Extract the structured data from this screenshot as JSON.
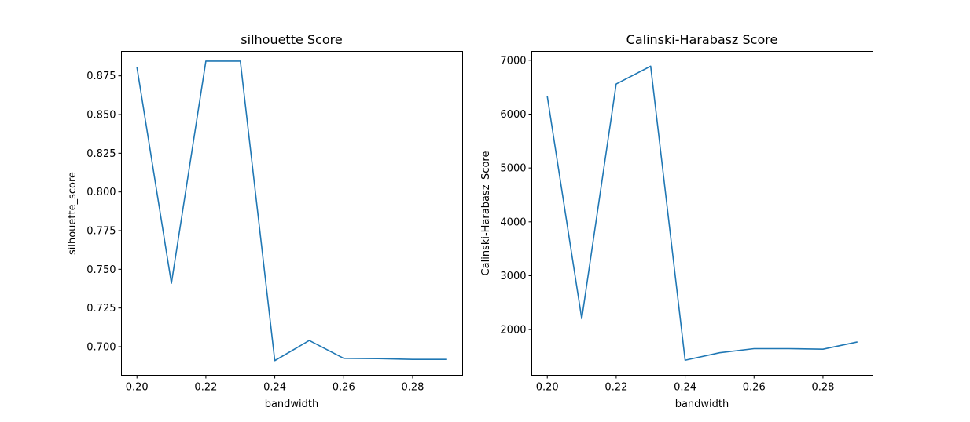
{
  "chart_data": [
    {
      "type": "line",
      "title": "silhouette Score",
      "xlabel": "bandwidth",
      "ylabel": "silhouette_score",
      "xlim": [
        0.1955,
        0.2945
      ],
      "ylim": [
        0.6815,
        0.8908
      ],
      "xticks": [
        "0.20",
        "0.22",
        "0.24",
        "0.26",
        "0.28"
      ],
      "yticks": [
        "0.700",
        "0.725",
        "0.750",
        "0.775",
        "0.800",
        "0.825",
        "0.850",
        "0.875"
      ],
      "grid": false,
      "color": "#1f77b4",
      "x": [
        0.2,
        0.21,
        0.22,
        0.23,
        0.24,
        0.25,
        0.26,
        0.27,
        0.28,
        0.29
      ],
      "y": [
        0.8805,
        0.741,
        0.8845,
        0.8845,
        0.691,
        0.704,
        0.6925,
        0.6923,
        0.6918,
        0.6918
      ]
    },
    {
      "type": "line",
      "title": "Calinski-Harabasz Score",
      "xlabel": "bandwidth",
      "ylabel": "Calinski-Harabasz_Score",
      "xlim": [
        0.1955,
        0.2945
      ],
      "ylim": [
        1150,
        7165
      ],
      "xticks": [
        "0.20",
        "0.22",
        "0.24",
        "0.26",
        "0.28"
      ],
      "yticks": [
        "2000",
        "3000",
        "4000",
        "5000",
        "6000",
        "7000"
      ],
      "grid": false,
      "color": "#1f77b4",
      "x": [
        0.2,
        0.21,
        0.22,
        0.23,
        0.24,
        0.25,
        0.26,
        0.27,
        0.28,
        0.29
      ],
      "y": [
        6330,
        2200,
        6560,
        6890,
        1430,
        1570,
        1645,
        1645,
        1635,
        1770
      ]
    }
  ]
}
